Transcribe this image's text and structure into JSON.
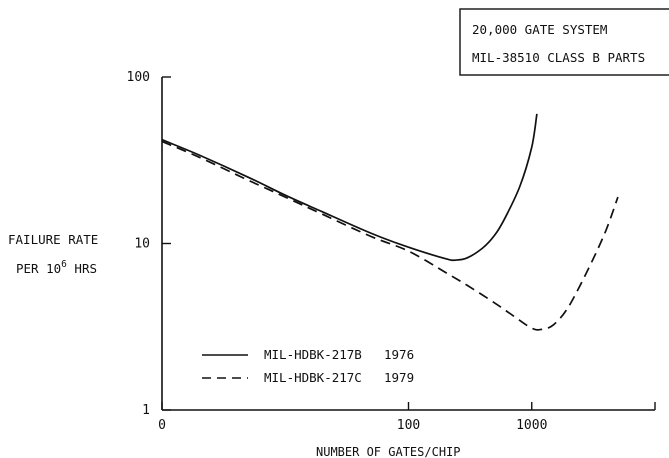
{
  "chart_data": {
    "type": "line",
    "title": "",
    "xlabel": "NUMBER OF GATES/CHIP",
    "ylabel_lines": [
      "FAILURE RATE",
      "PER 10",
      "6",
      " HRS"
    ],
    "x_scale": "log",
    "y_scale": "log",
    "xlim": [
      1,
      10000
    ],
    "ylim": [
      1,
      100
    ],
    "x_ticks": [
      {
        "value": 1,
        "label": "0"
      },
      {
        "value": 100,
        "label": "100"
      },
      {
        "value": 1000,
        "label": "1000"
      }
    ],
    "y_ticks": [
      {
        "value": 100,
        "label": "100"
      },
      {
        "value": 10,
        "label": "10"
      },
      {
        "value": 1,
        "label": "1"
      }
    ],
    "annotation_box": [
      "20,000 GATE SYSTEM",
      "MIL-38510 CLASS B PARTS"
    ],
    "legend_position": "bottom-left",
    "series": [
      {
        "name": "MIL-HDBK-217B",
        "year": "1976",
        "style": "solid",
        "x": [
          1,
          2,
          5,
          10,
          20,
          50,
          100,
          200,
          240,
          300,
          400,
          500,
          600,
          800,
          1000,
          1100
        ],
        "y": [
          42,
          34,
          25,
          19.5,
          15.5,
          11.5,
          9.5,
          8.1,
          7.95,
          8.2,
          9.4,
          11.2,
          14,
          22,
          38,
          60
        ]
      },
      {
        "name": "MIL-HDBK-217C",
        "year": "1979",
        "style": "dashed",
        "x": [
          1,
          2,
          5,
          10,
          20,
          50,
          100,
          200,
          300,
          500,
          700,
          1000,
          1200,
          1500,
          2000,
          3000,
          4000,
          5000
        ],
        "y": [
          41,
          33,
          24,
          19,
          15,
          11,
          9,
          6.7,
          5.6,
          4.4,
          3.7,
          3.1,
          3.05,
          3.25,
          4.2,
          7.5,
          12,
          19
        ]
      }
    ],
    "grid": false
  }
}
